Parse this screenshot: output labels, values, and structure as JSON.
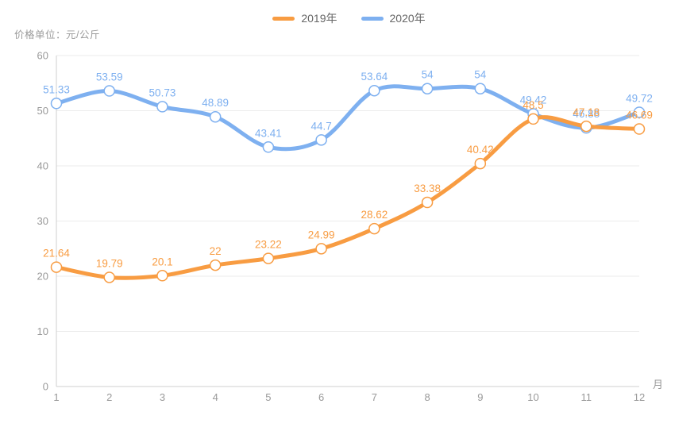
{
  "chart": {
    "unit_label": "价格单位：元/公斤",
    "x_axis_name": "月"
  },
  "legend": {
    "items": [
      {
        "label": "2019年",
        "color": "#F89C42"
      },
      {
        "label": "2020年",
        "color": "#7EB0F0"
      }
    ]
  },
  "chart_data": {
    "type": "line",
    "smooth": true,
    "grid": true,
    "legend_position": "top-center",
    "title": "价格单位：元/公斤",
    "xlabel": "月",
    "ylabel": "元/公斤",
    "categories": [
      1,
      2,
      3,
      4,
      5,
      6,
      7,
      8,
      9,
      10,
      11,
      12
    ],
    "ylim": [
      0,
      60
    ],
    "ytick_interval": 10,
    "yticks": [
      0,
      10,
      20,
      30,
      40,
      50,
      60
    ],
    "series": [
      {
        "name": "2019年",
        "color": "#F89C42",
        "values": [
          21.64,
          19.79,
          20.1,
          22,
          23.22,
          24.99,
          28.62,
          33.38,
          40.42,
          48.5,
          47.18,
          46.69
        ]
      },
      {
        "name": "2020年",
        "color": "#7EB0F0",
        "values": [
          51.33,
          53.59,
          50.73,
          48.89,
          43.41,
          44.7,
          53.64,
          54,
          54,
          49.42,
          46.88,
          49.72
        ]
      }
    ],
    "colors": {
      "tick_label": "#999999",
      "grid_line": "#EBEBEB",
      "axis_line": "#CFCFCF",
      "legend_text": "#666666",
      "background": "#FFFFFF"
    }
  }
}
